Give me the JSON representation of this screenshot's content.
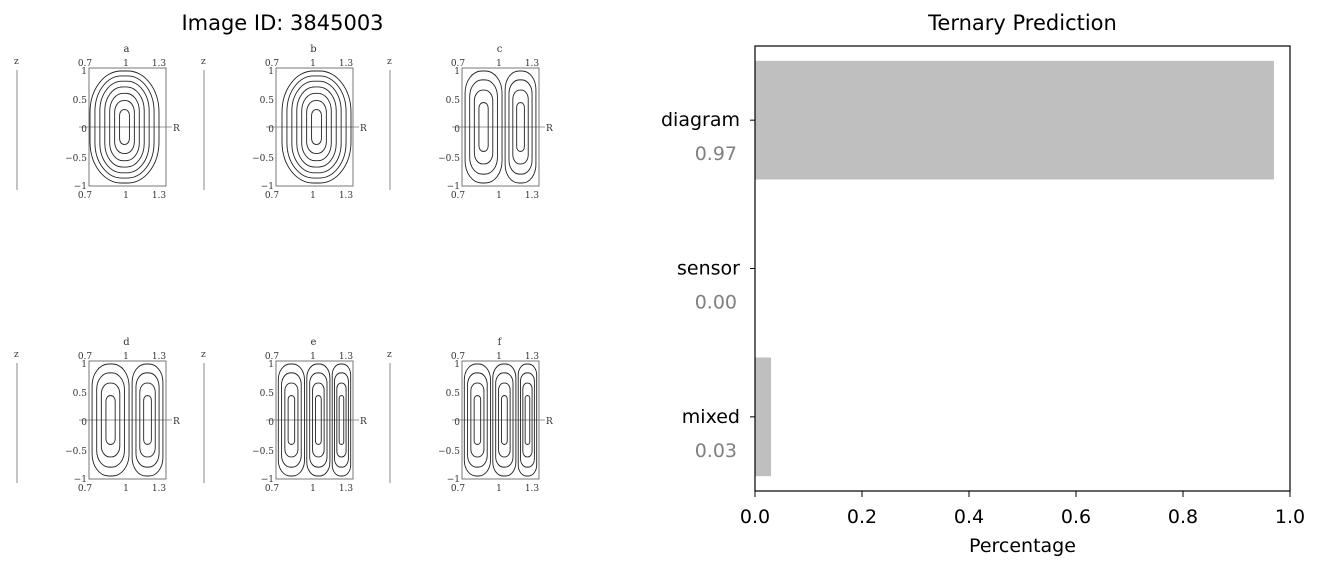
{
  "left_panel": {
    "title": "Image ID: 3845003",
    "panels": [
      {
        "label": "a",
        "shape": "single"
      },
      {
        "label": "b",
        "shape": "single"
      },
      {
        "label": "c",
        "shape": "double"
      },
      {
        "label": "d",
        "shape": "double"
      },
      {
        "label": "e",
        "shape": "triple"
      },
      {
        "label": "f",
        "shape": "triple"
      }
    ],
    "top_ticks": [
      "0.7",
      "1",
      "1.3"
    ],
    "bottom_ticks": [
      "0.7",
      "1",
      "1.3"
    ],
    "y_ticks": [
      "1",
      "0.5",
      "0",
      "−0.5",
      "−1"
    ],
    "z_label": "z",
    "r_label": "R"
  },
  "chart_data": {
    "type": "bar",
    "orientation": "horizontal",
    "title": "Ternary Prediction",
    "xlabel": "Percentage",
    "ylabel": "",
    "xlim": [
      0,
      1
    ],
    "x_ticks": [
      "0.0",
      "0.2",
      "0.4",
      "0.6",
      "0.8",
      "1.0"
    ],
    "categories": [
      "diagram",
      "sensor",
      "mixed"
    ],
    "values": [
      0.97,
      0.0,
      0.03
    ],
    "value_labels": [
      "0.97",
      "0.00",
      "0.03"
    ],
    "bar_color": "#bfbfbf",
    "value_label_color": "#808080",
    "grid": false
  }
}
